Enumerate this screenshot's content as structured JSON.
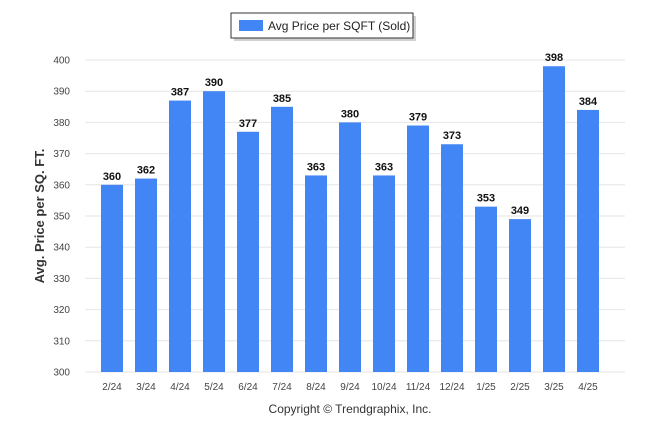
{
  "colors": {
    "bar": "#4285f4",
    "grid": "#e6e6e6"
  },
  "credit": "Copyright © Trendgraphix, Inc.",
  "chart_data": {
    "type": "bar",
    "title": "",
    "xlabel": "",
    "ylabel": "Avg. Price per SQ. FT.",
    "legend_position": "top-center",
    "grid": true,
    "ylim": [
      300,
      400
    ],
    "yticks": [
      "300",
      "310",
      "320",
      "330",
      "340",
      "350",
      "360",
      "370",
      "380",
      "390",
      "400"
    ],
    "categories": [
      "2/24",
      "3/24",
      "4/24",
      "5/24",
      "6/24",
      "7/24",
      "8/24",
      "9/24",
      "10/24",
      "11/24",
      "12/24",
      "1/25",
      "2/25",
      "3/25",
      "4/25"
    ],
    "series": [
      {
        "name": "Avg Price per SQFT (Sold)",
        "values": [
          360,
          362,
          387,
          390,
          377,
          385,
          363,
          380,
          363,
          379,
          373,
          353,
          349,
          398,
          384
        ]
      }
    ]
  }
}
